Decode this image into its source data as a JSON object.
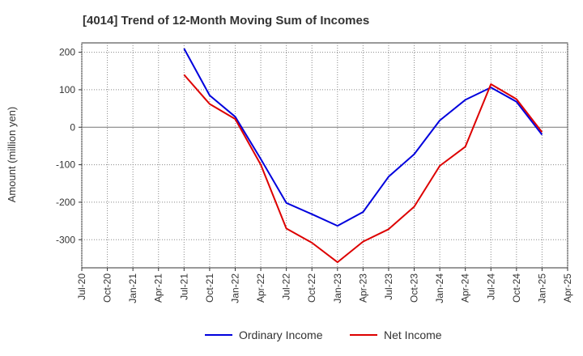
{
  "chart_data": {
    "type": "line",
    "title": "[4014]  Trend of 12-Month Moving Sum of Incomes",
    "xlabel": "",
    "ylabel": "Amount (million yen)",
    "ylim": [
      -375,
      225
    ],
    "yticks": [
      200,
      100,
      0,
      -100,
      -200,
      -300
    ],
    "x_ticks": [
      "Jul-20",
      "Oct-20",
      "Jan-21",
      "Apr-21",
      "Jul-21",
      "Oct-21",
      "Jan-22",
      "Apr-22",
      "Jul-22",
      "Oct-22",
      "Jan-23",
      "Apr-23",
      "Jul-23",
      "Oct-23",
      "Jan-24",
      "Apr-24",
      "Jul-24",
      "Oct-24",
      "Jan-25",
      "Apr-25"
    ],
    "x": [
      "Jul-21",
      "Oct-21",
      "Jan-22",
      "Apr-22",
      "Jul-22",
      "Oct-22",
      "Jan-23",
      "Apr-23",
      "Jul-23",
      "Oct-23",
      "Jan-24",
      "Apr-24",
      "Jul-24",
      "Oct-24",
      "Jan-25"
    ],
    "series": [
      {
        "name": "Ordinary Income",
        "color": "#0000dd",
        "values": [
          210,
          85,
          28,
          -85,
          -202,
          -232,
          -263,
          -226,
          -132,
          -72,
          18,
          73,
          106,
          68,
          -20
        ]
      },
      {
        "name": "Net Income",
        "color": "#dd0000",
        "values": [
          140,
          62,
          22,
          -100,
          -270,
          -308,
          -360,
          -305,
          -272,
          -212,
          -103,
          -52,
          115,
          75,
          -13
        ]
      }
    ],
    "grid": true,
    "legend": "bottom-center"
  }
}
